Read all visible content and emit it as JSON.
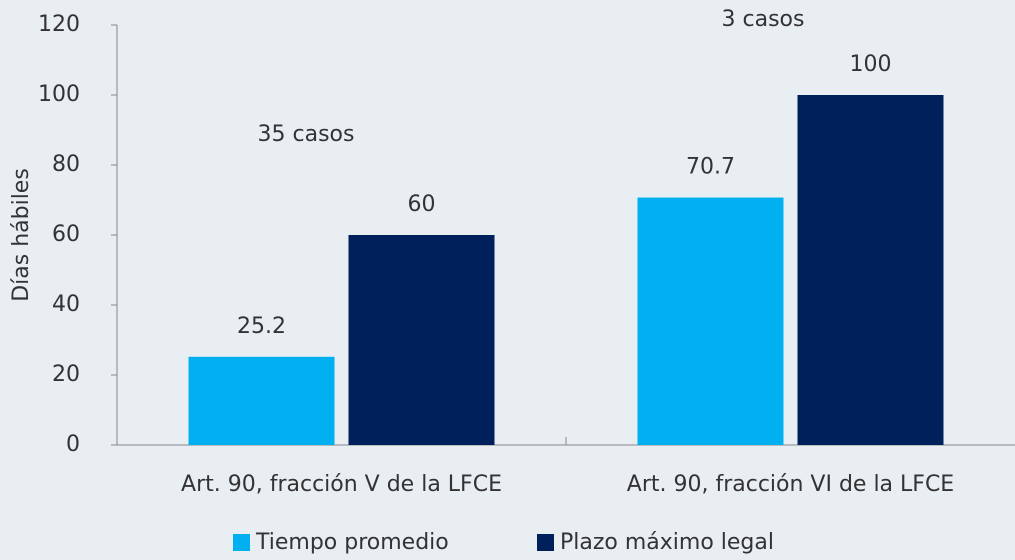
{
  "chart_data": {
    "type": "bar",
    "ylabel": "Días hábiles",
    "categories": [
      "Art. 90, fracción V de la LFCE",
      "Art. 90, fracción VI de la LFCE"
    ],
    "series": [
      {
        "name": "Tiempo promedio",
        "color": "#00b0f0",
        "values": [
          25.2,
          70.7
        ]
      },
      {
        "name": "Plazo máximo legal",
        "color": "#00205b",
        "values": [
          60,
          100
        ]
      }
    ],
    "annotations": [
      "35 casos",
      "3 casos"
    ],
    "ylim": [
      0,
      120
    ],
    "yticks": [
      0,
      20,
      40,
      60,
      80,
      100,
      120
    ],
    "grid": false,
    "legend": "bottom"
  }
}
